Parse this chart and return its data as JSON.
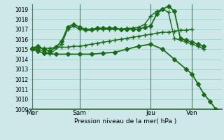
{
  "bg_color": "#cce8e8",
  "grid_color": "#88ccbb",
  "line_color": "#1a6b1a",
  "marker_color": "#1a6b1a",
  "xlabel_text": "Pression niveau de la mer( hPa )",
  "ylim": [
    1009,
    1019.5
  ],
  "yticks": [
    1009,
    1010,
    1011,
    1012,
    1013,
    1014,
    1015,
    1016,
    1017,
    1018,
    1019
  ],
  "xtick_labels": [
    "Mer",
    "Sam",
    "Jeu",
    "Ven"
  ],
  "xtick_positions": [
    0,
    8,
    20,
    27
  ],
  "vline_positions": [
    0,
    8,
    20,
    27
  ],
  "xlim": [
    -0.5,
    32
  ],
  "series": [
    {
      "x": [
        0,
        1,
        2,
        4,
        6,
        8,
        10,
        12,
        14,
        16,
        18,
        20,
        22,
        24,
        26,
        27,
        28,
        29,
        30,
        31
      ],
      "y": [
        1015.0,
        1014.8,
        1014.6,
        1014.5,
        1014.5,
        1014.5,
        1014.5,
        1014.6,
        1014.7,
        1015.0,
        1015.3,
        1015.5,
        1015.0,
        1014.0,
        1013.0,
        1012.5,
        1011.5,
        1010.5,
        1009.8,
        1009.0
      ],
      "marker": "D",
      "markersize": 3,
      "linewidth": 1.3,
      "linestyle": "-"
    },
    {
      "x": [
        0,
        1,
        2,
        3,
        4,
        5,
        6,
        7,
        8,
        9,
        10,
        11,
        12,
        13,
        14,
        15,
        16,
        17,
        18,
        19,
        20,
        21,
        22,
        23,
        24,
        25,
        26,
        27
      ],
      "y": [
        1015.1,
        1015.1,
        1015.1,
        1015.1,
        1015.2,
        1015.2,
        1015.2,
        1015.3,
        1015.3,
        1015.4,
        1015.5,
        1015.6,
        1015.7,
        1015.8,
        1015.9,
        1016.0,
        1016.1,
        1016.2,
        1016.3,
        1016.4,
        1016.5,
        1016.6,
        1016.7,
        1016.7,
        1016.8,
        1016.9,
        1016.9,
        1017.0
      ],
      "marker": "+",
      "markersize": 4,
      "linewidth": 1.0,
      "linestyle": "-"
    },
    {
      "x": [
        0,
        1,
        2,
        3,
        4,
        5,
        6,
        7,
        8,
        9,
        10,
        11,
        12,
        13,
        14,
        15,
        16,
        17,
        18,
        19,
        20,
        21,
        22,
        23,
        24,
        25,
        26,
        27,
        28,
        29,
        30
      ],
      "y": [
        1015.1,
        1015.3,
        1015.0,
        1014.8,
        1015.2,
        1015.8,
        1017.2,
        1017.5,
        1017.2,
        1017.0,
        1017.0,
        1017.1,
        1017.1,
        1017.1,
        1017.1,
        1017.0,
        1017.0,
        1017.0,
        1017.0,
        1017.2,
        1017.3,
        1018.5,
        1019.0,
        1019.3,
        1018.8,
        1016.1,
        1015.9,
        1015.7,
        1015.5,
        1015.3,
        null
      ],
      "marker": "D",
      "markersize": 3,
      "linewidth": 1.3,
      "linestyle": "-"
    },
    {
      "x": [
        0,
        1,
        2,
        3,
        5,
        6,
        7,
        8,
        9,
        10,
        11,
        12,
        13,
        14,
        15,
        16,
        17,
        18,
        19,
        20,
        21,
        22,
        23,
        24,
        25,
        26,
        27,
        28,
        29,
        30
      ],
      "y": [
        1015.0,
        1015.0,
        1014.8,
        1014.5,
        1015.5,
        1017.0,
        1017.3,
        1017.0,
        1016.9,
        1016.9,
        1017.0,
        1017.0,
        1017.0,
        1017.0,
        1017.0,
        1017.1,
        1017.1,
        1017.2,
        1017.5,
        1018.3,
        1018.8,
        1019.0,
        1018.7,
        1016.1,
        1015.9,
        1015.7,
        1015.5,
        1015.3,
        1015.0,
        null
      ],
      "marker": "+",
      "markersize": 4,
      "linewidth": 1.0,
      "linestyle": "-"
    }
  ]
}
